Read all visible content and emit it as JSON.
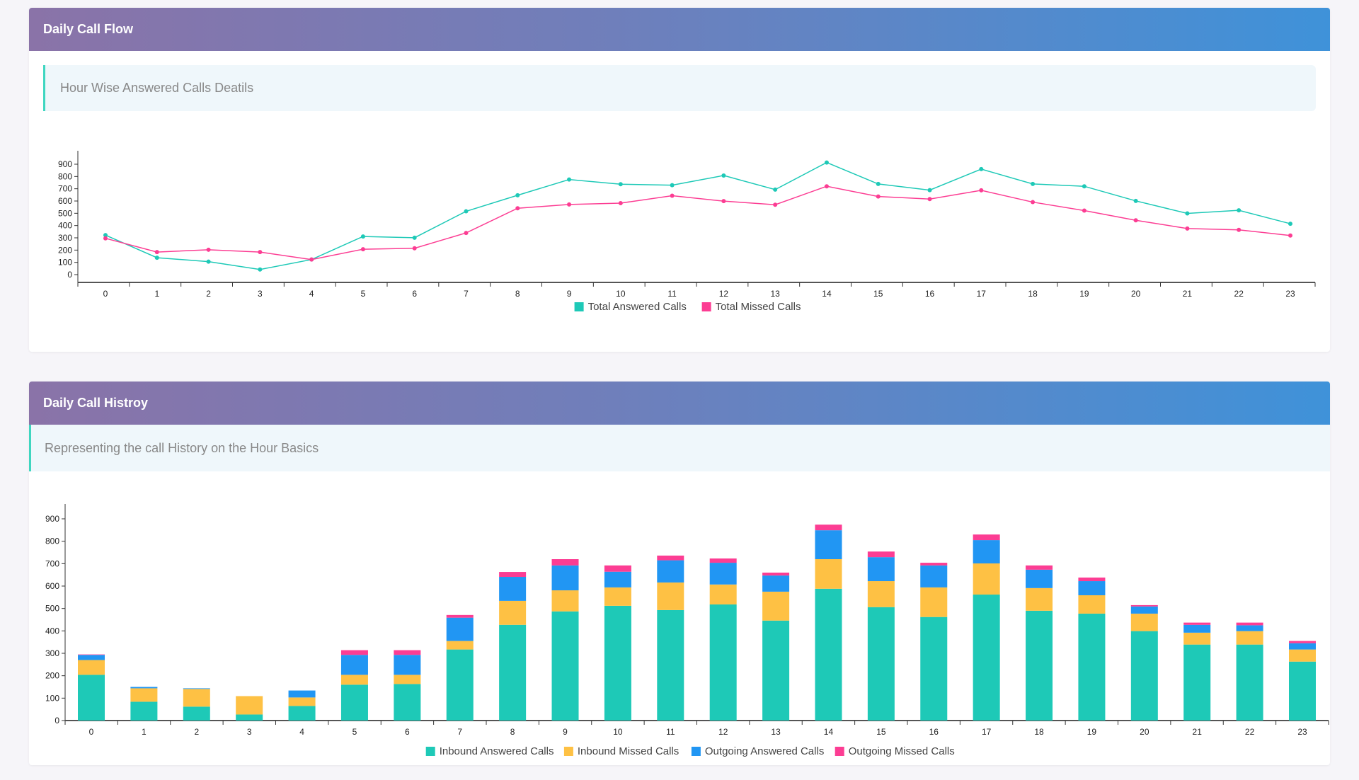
{
  "colors": {
    "answered": "#1ec9b7",
    "missed": "#fc3d93",
    "inbound_answered": "#1ec9b7",
    "inbound_missed": "#fec144",
    "outgoing_answered": "#2196f3",
    "outgoing_missed": "#fc3d93"
  },
  "card1": {
    "title": "Daily Call Flow",
    "note": "Hour Wise Answered Calls Deatils"
  },
  "card2": {
    "title": "Daily Call Histroy",
    "note": "Representing the call History on the Hour Basics"
  },
  "chart_data": [
    {
      "type": "line",
      "ylim": [
        0,
        900
      ],
      "yticks": [
        0,
        100,
        200,
        300,
        400,
        500,
        600,
        700,
        800,
        900
      ],
      "grid": false,
      "legend": "bottom",
      "categories": [
        "0",
        "1",
        "2",
        "3",
        "4",
        "5",
        "6",
        "7",
        "8",
        "9",
        "10",
        "11",
        "12",
        "13",
        "14",
        "15",
        "16",
        "17",
        "18",
        "19",
        "20",
        "21",
        "22",
        "23"
      ],
      "series": [
        {
          "name": "Total Answered Calls",
          "values": [
            322,
            138,
            106,
            42,
            123,
            311,
            301,
            516,
            647,
            775,
            737,
            729,
            808,
            693,
            914,
            739,
            689,
            860,
            739,
            720,
            601,
            499,
            524,
            415
          ]
        },
        {
          "name": "Total Missed Calls",
          "values": [
            296,
            184,
            203,
            184,
            123,
            207,
            215,
            340,
            541,
            572,
            583,
            643,
            599,
            570,
            720,
            637,
            616,
            687,
            591,
            522,
            443,
            376,
            365,
            319
          ]
        }
      ]
    },
    {
      "type": "bar",
      "stacked": true,
      "ylim": [
        0,
        900
      ],
      "yticks": [
        0,
        100,
        200,
        300,
        400,
        500,
        600,
        700,
        800,
        900
      ],
      "grid": false,
      "legend": "bottom",
      "categories": [
        "0",
        "1",
        "2",
        "3",
        "4",
        "5",
        "6",
        "7",
        "8",
        "9",
        "10",
        "11",
        "12",
        "13",
        "14",
        "15",
        "16",
        "17",
        "18",
        "19",
        "20",
        "21",
        "22",
        "23"
      ],
      "series": [
        {
          "name": "Inbound Answered Calls",
          "values": [
            204,
            84,
            62,
            27,
            65,
            160,
            163,
            317,
            427,
            487,
            512,
            493,
            518,
            446,
            588,
            506,
            462,
            562,
            490,
            477,
            399,
            339,
            339,
            263
          ]
        },
        {
          "name": "Inbound Missed Calls",
          "values": [
            66,
            60,
            79,
            82,
            38,
            44,
            41,
            38,
            107,
            94,
            82,
            123,
            89,
            129,
            132,
            116,
            132,
            139,
            101,
            82,
            78,
            53,
            60,
            54
          ]
        },
        {
          "name": "Outgoing Answered Calls",
          "values": [
            23,
            6,
            3,
            0,
            31,
            89,
            89,
            104,
            107,
            111,
            70,
            99,
            97,
            72,
            129,
            107,
            98,
            104,
            82,
            63,
            32,
            35,
            26,
            28
          ]
        },
        {
          "name": "Outgoing Missed Calls",
          "values": [
            2,
            0,
            0,
            0,
            0,
            21,
            21,
            12,
            22,
            28,
            28,
            21,
            19,
            13,
            25,
            25,
            12,
            25,
            19,
            16,
            6,
            10,
            12,
            10
          ]
        }
      ]
    }
  ]
}
